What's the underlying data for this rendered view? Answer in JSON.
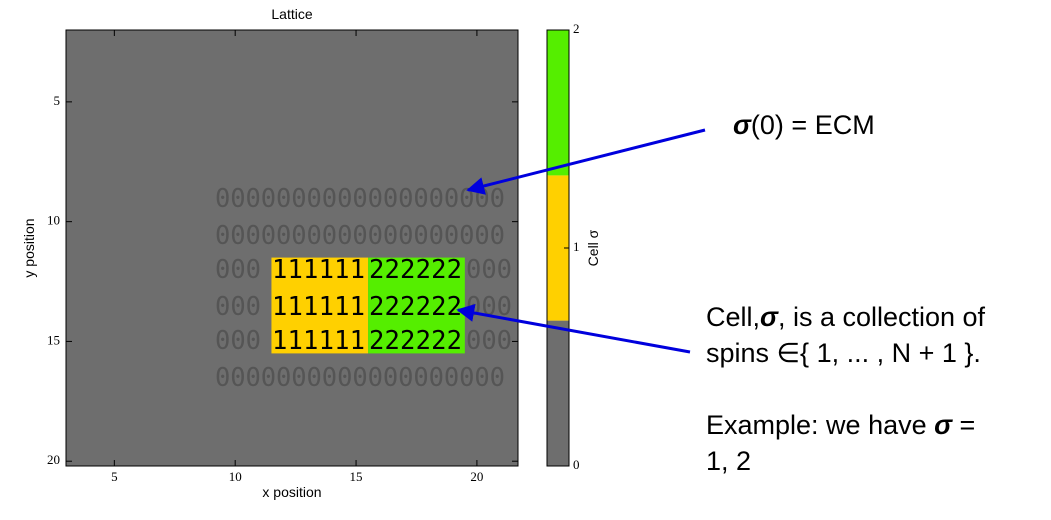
{
  "plot": {
    "title": "Lattice",
    "xlabel": "x position",
    "ylabel": "y position",
    "xlim": [
      3,
      21.7
    ],
    "ylim": [
      2,
      20.2
    ],
    "xticks": [
      5,
      10,
      15,
      20
    ],
    "yticks": [
      5,
      10,
      15,
      20
    ],
    "background": "#6e6e6e",
    "regions": [
      {
        "color": "#ffd000",
        "x": [
          11.5,
          15.5
        ],
        "y": [
          11.5,
          15.5
        ]
      },
      {
        "color": "#55ee00",
        "x": [
          15.5,
          19.5
        ],
        "y": [
          11.5,
          15.5
        ]
      }
    ],
    "lattice_rows": [
      [
        "0000000000000000000"
      ],
      [
        "0000000000000000000"
      ],
      [
        "000",
        "111111",
        "222222",
        "000"
      ],
      [
        "000",
        "111111",
        "222222",
        "000"
      ],
      [
        "000",
        "111111",
        "222222",
        "000"
      ],
      [
        "0000000000000000000"
      ]
    ]
  },
  "colorbar": {
    "label": "Cell σ",
    "lim": [
      0,
      2
    ],
    "ticks": [
      0,
      1,
      2
    ],
    "bands": [
      {
        "color": "#6e6e6e",
        "range": [
          0,
          0.667
        ]
      },
      {
        "color": "#ffd000",
        "range": [
          0.667,
          1.333
        ]
      },
      {
        "color": "#55ee00",
        "range": [
          1.333,
          2
        ]
      }
    ]
  },
  "annotations": {
    "ecm": [
      "σ",
      "(0) = ECM"
    ],
    "cell": [
      [
        "Cell,",
        "σ",
        ", is a collection of"
      ],
      [
        "spins ∈{ 1, ... , N + 1 }."
      ],
      [
        "Example: we have ",
        "σ",
        " ="
      ],
      [
        "1, 2"
      ]
    ]
  }
}
